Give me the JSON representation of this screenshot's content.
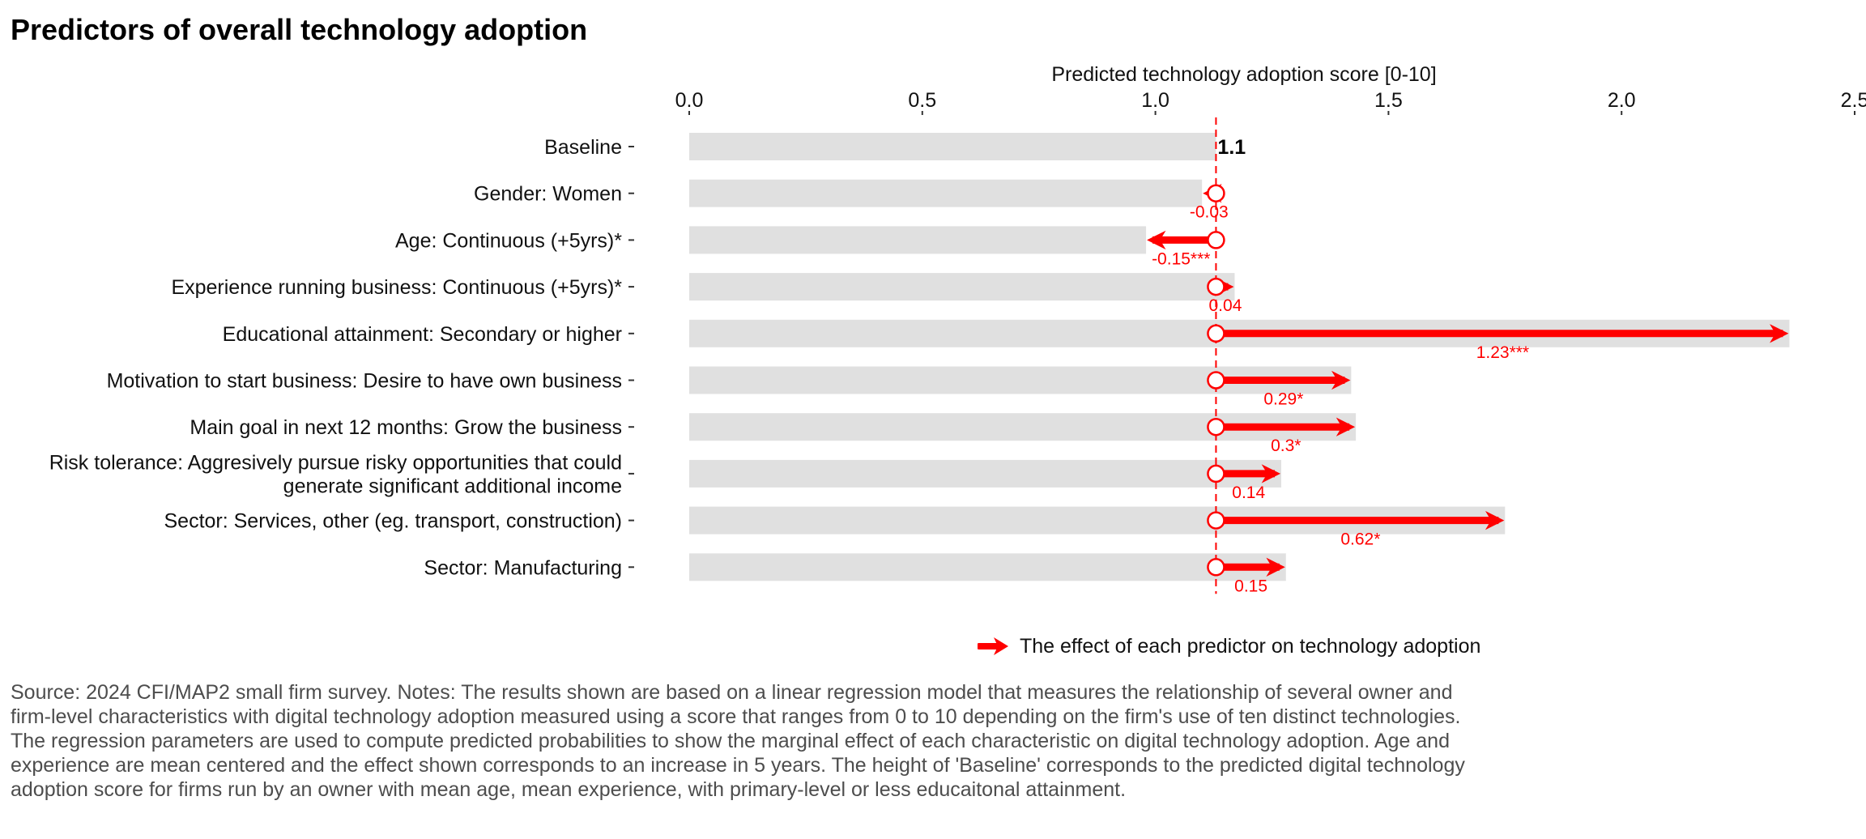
{
  "title": "Predictors of overall technology adoption",
  "colors": {
    "bar": "#e0e0e0",
    "effect": "#ff0000",
    "reference_line": "#ff0000",
    "text": "#111111",
    "note": "#4d4d4d"
  },
  "chart_data": {
    "type": "bar",
    "orientation": "horizontal",
    "xlabel": "Predicted technology adoption score [0-10]",
    "xlabel_position": "top",
    "xlim": [
      0,
      2.5
    ],
    "xticks": [
      "0.0",
      "0.5",
      "1.0",
      "1.5",
      "2.0",
      "2.5"
    ],
    "xtick_values": [
      0,
      0.5,
      1.0,
      1.5,
      2.0,
      2.5
    ],
    "grid": false,
    "baseline_value": 1.13,
    "categories": [
      {
        "label": "Baseline",
        "bar_value": 1.13,
        "effect": null,
        "value_label": "1.1",
        "is_baseline": true
      },
      {
        "label": "Gender: Women",
        "bar_value": 1.1,
        "effect": -0.03,
        "value_label": "-0.03"
      },
      {
        "label": "Age: Continuous (+5yrs)*",
        "bar_value": 0.98,
        "effect": -0.15,
        "value_label": "-0.15***"
      },
      {
        "label": "Experience running business: Continuous (+5yrs)*",
        "bar_value": 1.17,
        "effect": 0.04,
        "value_label": "0.04"
      },
      {
        "label": "Educational attainment: Secondary or higher",
        "bar_value": 2.36,
        "effect": 1.23,
        "value_label": "1.23***"
      },
      {
        "label": "Motivation to start business: Desire to have own business",
        "bar_value": 1.42,
        "effect": 0.29,
        "value_label": "0.29*"
      },
      {
        "label": "Main goal in next 12 months: Grow the business",
        "bar_value": 1.43,
        "effect": 0.3,
        "value_label": "0.3*"
      },
      {
        "label": [
          "Risk tolerance: Aggresively pursue risky opportunities that could",
          "generate significant additional income"
        ],
        "bar_value": 1.27,
        "effect": 0.14,
        "value_label": "0.14"
      },
      {
        "label": "Sector: Services, other (eg. transport, construction)",
        "bar_value": 1.75,
        "effect": 0.62,
        "value_label": "0.62*"
      },
      {
        "label": "Sector: Manufacturing",
        "bar_value": 1.28,
        "effect": 0.15,
        "value_label": "0.15"
      }
    ],
    "legend": {
      "position": "bottom-center",
      "entries": [
        {
          "label": "The effect of each predictor on technology adoption",
          "symbol": "red-arrow"
        }
      ]
    }
  },
  "note": "Source: 2024 CFI/MAP2 small firm survey. Notes: The results shown are based on a linear regression model that measures the relationship of several owner and firm-level characteristics with digital technology adoption measured using a score that ranges from 0 to 10 depending on the firm's use of ten distinct technologies. The regression parameters are used to compute predicted probabilities to show the marginal effect of each characteristic on digital technology adoption. Age and experience are mean centered and the effect shown corresponds to an increase in 5 years. The height of 'Baseline' corresponds to the predicted digital technology adoption score for firms run by an owner with mean age, mean experience, with primary-level or less educaitonal attainment."
}
